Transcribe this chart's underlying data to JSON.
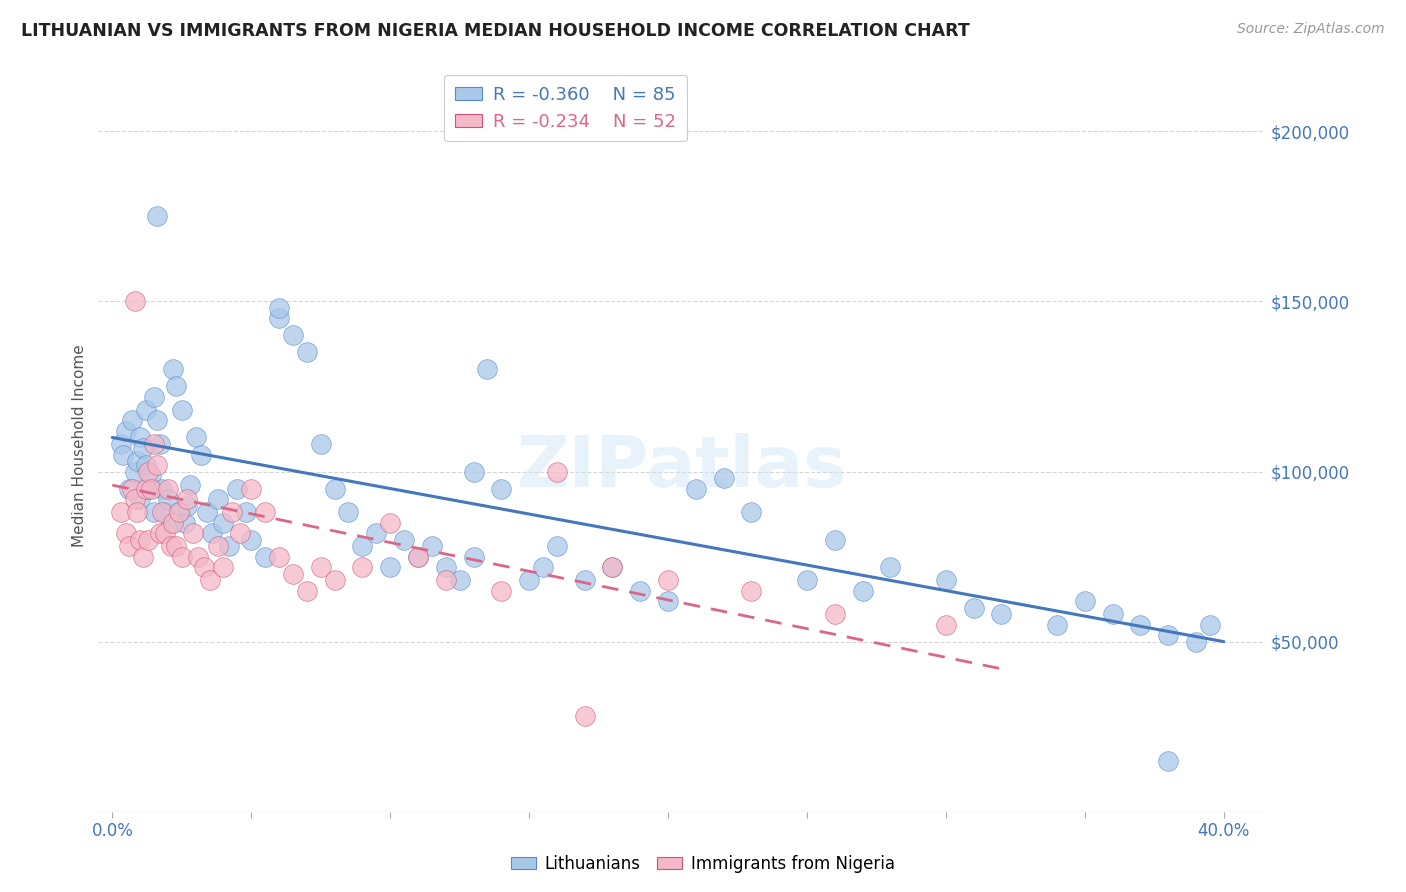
{
  "title": "LITHUANIAN VS IMMIGRANTS FROM NIGERIA MEDIAN HOUSEHOLD INCOME CORRELATION CHART",
  "source": "Source: ZipAtlas.com",
  "ylabel": "Median Household Income",
  "legend_label1": "Lithuanians",
  "legend_label2": "Immigrants from Nigeria",
  "R1": -0.36,
  "N1": 85,
  "R2": -0.234,
  "N2": 52,
  "color_blue": "#a8c8e8",
  "color_pink": "#f4b8c8",
  "color_blue_line": "#4477bb",
  "color_pink_line": "#dd6688",
  "color_blue_edge": "#5588cc",
  "color_pink_edge": "#cc5577",
  "ylim_min": 0,
  "ylim_max": 215000,
  "xlim_min": -0.005,
  "xlim_max": 0.415,
  "yticks": [
    0,
    50000,
    100000,
    150000,
    200000
  ],
  "ytick_labels": [
    "",
    "$50,000",
    "$100,000",
    "$150,000",
    "$200,000"
  ],
  "xticks": [
    0.0,
    0.05,
    0.1,
    0.15,
    0.2,
    0.25,
    0.3,
    0.35,
    0.4
  ],
  "blue_x": [
    0.003,
    0.004,
    0.005,
    0.006,
    0.007,
    0.008,
    0.009,
    0.01,
    0.01,
    0.011,
    0.012,
    0.012,
    0.013,
    0.014,
    0.015,
    0.015,
    0.016,
    0.017,
    0.018,
    0.019,
    0.02,
    0.021,
    0.022,
    0.023,
    0.024,
    0.025,
    0.026,
    0.027,
    0.028,
    0.03,
    0.032,
    0.034,
    0.036,
    0.038,
    0.04,
    0.042,
    0.045,
    0.048,
    0.05,
    0.055,
    0.06,
    0.065,
    0.07,
    0.075,
    0.08,
    0.085,
    0.09,
    0.095,
    0.1,
    0.105,
    0.11,
    0.115,
    0.12,
    0.125,
    0.13,
    0.14,
    0.15,
    0.155,
    0.16,
    0.17,
    0.18,
    0.19,
    0.2,
    0.21,
    0.22,
    0.23,
    0.25,
    0.26,
    0.27,
    0.28,
    0.3,
    0.31,
    0.32,
    0.34,
    0.35,
    0.36,
    0.37,
    0.38,
    0.39,
    0.395,
    0.016,
    0.06,
    0.13,
    0.135,
    0.38
  ],
  "blue_y": [
    108000,
    105000,
    112000,
    95000,
    115000,
    100000,
    103000,
    110000,
    92000,
    107000,
    102000,
    118000,
    95000,
    99000,
    122000,
    88000,
    115000,
    108000,
    95000,
    88000,
    92000,
    85000,
    130000,
    125000,
    88000,
    118000,
    85000,
    90000,
    96000,
    110000,
    105000,
    88000,
    82000,
    92000,
    85000,
    78000,
    95000,
    88000,
    80000,
    75000,
    145000,
    140000,
    135000,
    108000,
    95000,
    88000,
    78000,
    82000,
    72000,
    80000,
    75000,
    78000,
    72000,
    68000,
    75000,
    95000,
    68000,
    72000,
    78000,
    68000,
    72000,
    65000,
    62000,
    95000,
    98000,
    88000,
    68000,
    80000,
    65000,
    72000,
    68000,
    60000,
    58000,
    55000,
    62000,
    58000,
    55000,
    52000,
    50000,
    55000,
    175000,
    148000,
    100000,
    130000,
    15000
  ],
  "pink_x": [
    0.003,
    0.005,
    0.006,
    0.007,
    0.008,
    0.009,
    0.01,
    0.011,
    0.012,
    0.013,
    0.013,
    0.014,
    0.015,
    0.016,
    0.017,
    0.018,
    0.019,
    0.02,
    0.021,
    0.022,
    0.023,
    0.024,
    0.025,
    0.027,
    0.029,
    0.031,
    0.033,
    0.035,
    0.038,
    0.04,
    0.043,
    0.046,
    0.05,
    0.055,
    0.06,
    0.065,
    0.07,
    0.075,
    0.08,
    0.09,
    0.1,
    0.11,
    0.12,
    0.14,
    0.16,
    0.18,
    0.2,
    0.23,
    0.26,
    0.3,
    0.008,
    0.17
  ],
  "pink_y": [
    88000,
    82000,
    78000,
    95000,
    92000,
    88000,
    80000,
    75000,
    95000,
    100000,
    80000,
    95000,
    108000,
    102000,
    82000,
    88000,
    82000,
    95000,
    78000,
    85000,
    78000,
    88000,
    75000,
    92000,
    82000,
    75000,
    72000,
    68000,
    78000,
    72000,
    88000,
    82000,
    95000,
    88000,
    75000,
    70000,
    65000,
    72000,
    68000,
    72000,
    85000,
    75000,
    68000,
    65000,
    100000,
    72000,
    68000,
    65000,
    58000,
    55000,
    150000,
    28000
  ]
}
